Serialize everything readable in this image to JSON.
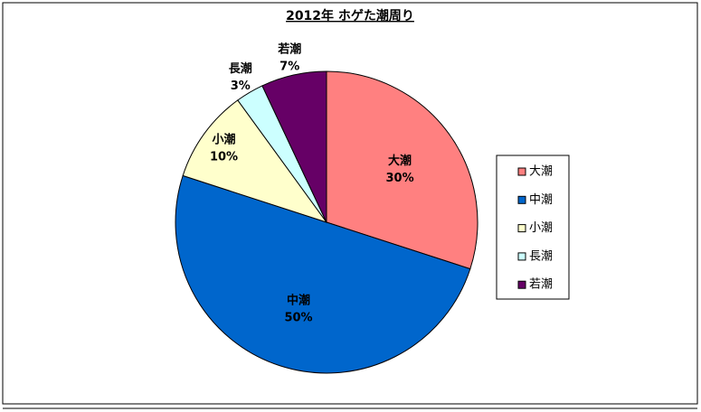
{
  "chart_data": {
    "type": "pie",
    "title": "2012年 ホゲた潮周り",
    "categories": [
      "大潮",
      "中潮",
      "小潮",
      "長潮",
      "若潮"
    ],
    "values": [
      30,
      50,
      10,
      3,
      7
    ],
    "value_labels": [
      "30%",
      "50%",
      "10%",
      "3%",
      "7%"
    ],
    "colors": [
      "#ff8080",
      "#0066cc",
      "#ffffcc",
      "#ccffff",
      "#660066"
    ],
    "legend": "right"
  }
}
